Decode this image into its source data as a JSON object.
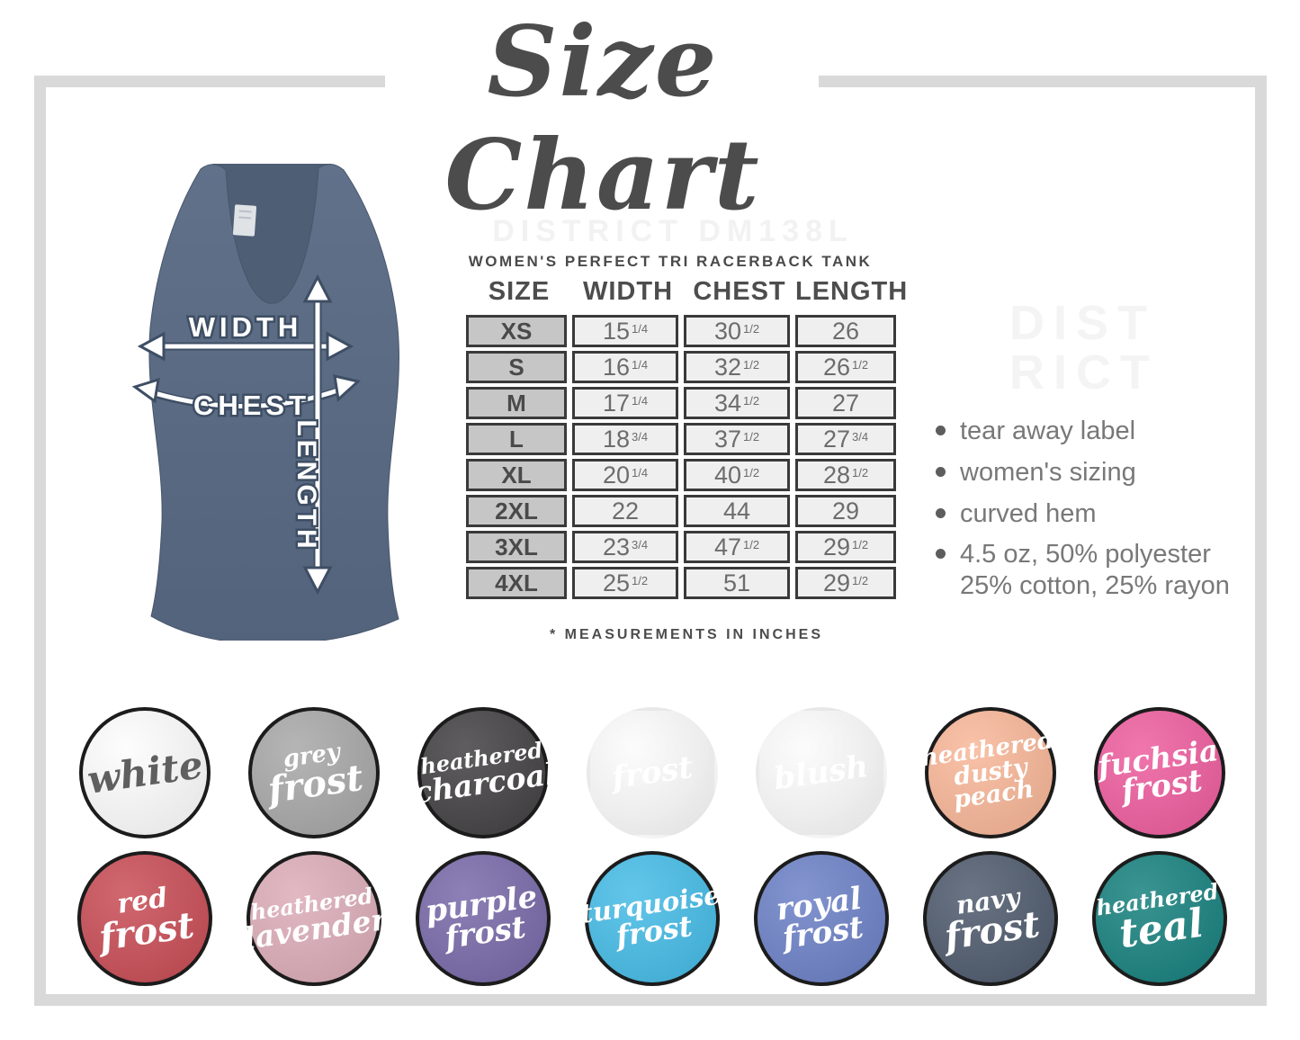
{
  "page": {
    "title": "Size Chart"
  },
  "product": {
    "watermark_center": "DISTRICT DM138L",
    "watermark_side_line1": "DIST",
    "watermark_side_line2": "RICT",
    "subtitle": "WOMEN'S PERFECT TRI RACERBACK TANK",
    "footnote": "* MEASUREMENTS IN INCHES"
  },
  "colors": {
    "frame": "#d9d9d9",
    "title_text": "#4c4c4c",
    "table_border": "#3a3a3a",
    "size_column_bg": "#c6c6c6",
    "data_cell_bg": "#efefef",
    "tank_fabric": "#5b6b82"
  },
  "tank": {
    "labels": {
      "width": "WIDTH",
      "chest": "CHEST",
      "length": "LENGTH"
    }
  },
  "size_table": {
    "headers": [
      "SIZE",
      "WIDTH",
      "CHEST",
      "LENGTH"
    ],
    "rows": [
      {
        "size": "XS",
        "width": {
          "n": "15",
          "f": "1/4"
        },
        "chest": {
          "n": "30",
          "f": "1/2"
        },
        "length": {
          "n": "26",
          "f": ""
        }
      },
      {
        "size": "S",
        "width": {
          "n": "16",
          "f": "1/4"
        },
        "chest": {
          "n": "32",
          "f": "1/2"
        },
        "length": {
          "n": "26",
          "f": "1/2"
        }
      },
      {
        "size": "M",
        "width": {
          "n": "17",
          "f": "1/4"
        },
        "chest": {
          "n": "34",
          "f": "1/2"
        },
        "length": {
          "n": "27",
          "f": ""
        }
      },
      {
        "size": "L",
        "width": {
          "n": "18",
          "f": "3/4"
        },
        "chest": {
          "n": "37",
          "f": "1/2"
        },
        "length": {
          "n": "27",
          "f": "3/4"
        }
      },
      {
        "size": "XL",
        "width": {
          "n": "20",
          "f": "1/4"
        },
        "chest": {
          "n": "40",
          "f": "1/2"
        },
        "length": {
          "n": "28",
          "f": "1/2"
        }
      },
      {
        "size": "2XL",
        "width": {
          "n": "22",
          "f": ""
        },
        "chest": {
          "n": "44",
          "f": ""
        },
        "length": {
          "n": "29",
          "f": ""
        }
      },
      {
        "size": "3XL",
        "width": {
          "n": "23",
          "f": "3/4"
        },
        "chest": {
          "n": "47",
          "f": "1/2"
        },
        "length": {
          "n": "29",
          "f": "1/2"
        }
      },
      {
        "size": "4XL",
        "width": {
          "n": "25",
          "f": "1/2"
        },
        "chest": {
          "n": "51",
          "f": ""
        },
        "length": {
          "n": "29",
          "f": "1/2"
        }
      }
    ]
  },
  "features": [
    {
      "text": "tear away label"
    },
    {
      "text": "women's sizing"
    },
    {
      "text": "curved hem"
    },
    {
      "text": "4.5 oz, 50% polyester",
      "line2": "25% cotton, 25% rayon"
    }
  ],
  "swatches": {
    "row1": [
      {
        "name": "white",
        "bg": "#fdfdfd",
        "text": "#5f5f5f",
        "outline": "#1c1c1c",
        "lines": [
          {
            "t": "white",
            "s": 42
          }
        ]
      },
      {
        "name": "grey-frost",
        "bg": "#a7a7a7",
        "text": "#ffffff",
        "outline": "#1c1c1c",
        "lines": [
          {
            "t": "grey",
            "s": 26
          },
          {
            "t": "frost",
            "s": 40
          }
        ]
      },
      {
        "name": "heathered-charcoal",
        "bg": "#413f41",
        "text": "#ffffff",
        "outline": "#1c1c1c",
        "lines": [
          {
            "t": "heathered",
            "s": 24
          },
          {
            "t": "charcoal",
            "s": 33
          }
        ]
      },
      {
        "name": "faint-frost",
        "bg": "#fbfbfb",
        "text": "#ffffff",
        "outline": "transparent",
        "lines": [
          {
            "t": "frost",
            "s": 34
          }
        ]
      },
      {
        "name": "faint-blush",
        "bg": "#fbfbfb",
        "text": "#ffffff",
        "outline": "transparent",
        "lines": [
          {
            "t": "blush",
            "s": 34
          }
        ]
      },
      {
        "name": "heathered-dusty-peach",
        "bg": "#f8b697",
        "text": "#ffffff",
        "outline": "#1c1c1c",
        "lines": [
          {
            "t": "heathered",
            "s": 26
          },
          {
            "t": "dusty peach",
            "s": 27
          }
        ]
      },
      {
        "name": "fuchsia-frost",
        "bg": "#ee5c9e",
        "text": "#ffffff",
        "outline": "#1c1c1c",
        "lines": [
          {
            "t": "fuchsia",
            "s": 33
          },
          {
            "t": "frost",
            "s": 34
          }
        ]
      }
    ],
    "row2": [
      {
        "name": "red-frost",
        "bg": "#c84b54",
        "text": "#ffffff",
        "outline": "#1c1c1c",
        "lines": [
          {
            "t": "red",
            "s": 30
          },
          {
            "t": "frost",
            "s": 40
          }
        ]
      },
      {
        "name": "heathered-lavender",
        "bg": "#dcacb7",
        "text": "#ffffff",
        "outline": "#1c1c1c",
        "lines": [
          {
            "t": "heathered",
            "s": 24
          },
          {
            "t": "lavender",
            "s": 33
          }
        ]
      },
      {
        "name": "purple-frost",
        "bg": "#7768a8",
        "text": "#ffffff",
        "outline": "#1c1c1c",
        "lines": [
          {
            "t": "purple",
            "s": 34
          },
          {
            "t": "frost",
            "s": 34
          }
        ]
      },
      {
        "name": "turquoise-frost",
        "bg": "#44bbe6",
        "text": "#ffffff",
        "outline": "#1c1c1c",
        "lines": [
          {
            "t": "turquoise",
            "s": 29
          },
          {
            "t": "frost",
            "s": 32
          }
        ]
      },
      {
        "name": "royal-frost",
        "bg": "#6b80c6",
        "text": "#ffffff",
        "outline": "#1c1c1c",
        "lines": [
          {
            "t": "royal",
            "s": 34
          },
          {
            "t": "frost",
            "s": 34
          }
        ]
      },
      {
        "name": "navy-frost",
        "bg": "#4d596c",
        "text": "#ffffff",
        "outline": "#1c1c1c",
        "lines": [
          {
            "t": "navy",
            "s": 28
          },
          {
            "t": "frost",
            "s": 40
          }
        ]
      },
      {
        "name": "heathered-teal",
        "bg": "#15807d",
        "text": "#ffffff",
        "outline": "#1c1c1c",
        "lines": [
          {
            "t": "heathered",
            "s": 24
          },
          {
            "t": "teal",
            "s": 44
          }
        ]
      }
    ]
  }
}
